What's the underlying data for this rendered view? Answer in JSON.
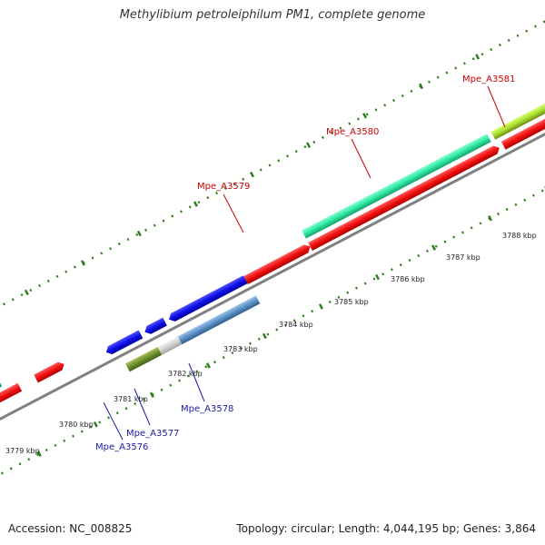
{
  "title": "Methylibium petroleiphilum PM1, complete genome",
  "footer": {
    "accession": "Accession: NC_008825",
    "summary": "Topology: circular; Length: 4,044,195 bp; Genes: 3,864"
  },
  "colors": {
    "forward_label": "#cc0000",
    "reverse_label": "#1a1aa8",
    "tick": "#2e7d1e",
    "backbone": "#808080"
  },
  "scale_labels": [
    "3779 kbp",
    "3780 kbp",
    "3781 kbp",
    "3782 kbp",
    "3783 kbp",
    "3784 kbp",
    "3785 kbp",
    "3786 kbp",
    "3787 kbp",
    "3788 kbp"
  ],
  "gene_labels": {
    "forward": [
      "Mpe_A3579",
      "Mpe_A3580",
      "Mpe_A3581"
    ],
    "reverse": [
      "Mpe_A3576",
      "Mpe_A3577",
      "Mpe_A3578"
    ]
  }
}
